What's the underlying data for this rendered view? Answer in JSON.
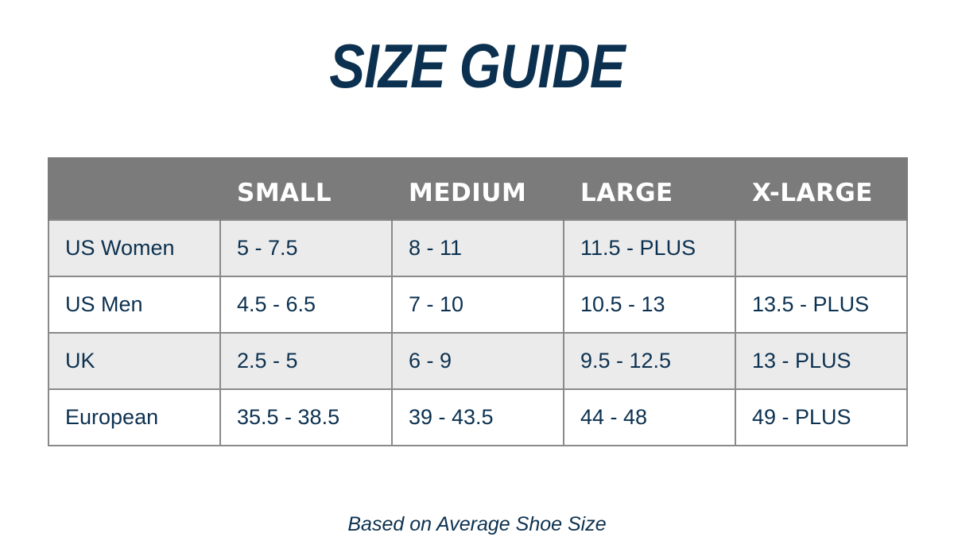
{
  "title": "SIZE GUIDE",
  "table": {
    "headers": [
      "",
      "SMALL",
      "MEDIUM",
      "LARGE",
      "X-LARGE"
    ],
    "rows": [
      {
        "label": "US Women",
        "cells": [
          "5 - 7.5",
          "8 - 11",
          "11.5 - PLUS",
          ""
        ]
      },
      {
        "label": "US Men",
        "cells": [
          "4.5 - 6.5",
          "7 - 10",
          "10.5 - 13",
          "13.5 - PLUS"
        ]
      },
      {
        "label": "UK",
        "cells": [
          "2.5 - 5",
          "6 - 9",
          "9.5 - 12.5",
          "13 - PLUS"
        ]
      },
      {
        "label": "European",
        "cells": [
          "35.5 - 38.5",
          "39 - 43.5",
          "44 - 48",
          "49 - PLUS"
        ]
      }
    ]
  },
  "footnote": "Based on Average Shoe Size",
  "colors": {
    "text": "#0c3150",
    "header_bg": "#7b7b7b",
    "shaded_row_bg": "#ebebeb",
    "border": "#8a8a8a"
  }
}
